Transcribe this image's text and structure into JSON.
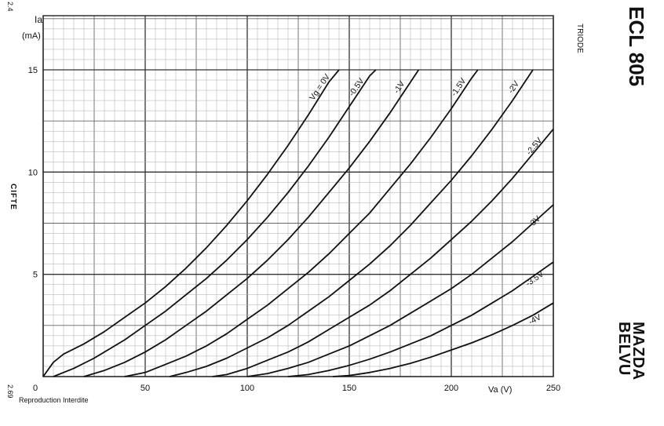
{
  "page": {
    "corner_top": "2.4",
    "corner_bottom": "2.69",
    "side_label": "CIFTE",
    "footer": "Reproduction Interdite",
    "triode_label": "TRIODE",
    "tube_name": "ECL 805",
    "brand_line1": "MAZDA",
    "brand_line2": "BELVU"
  },
  "chart_data": {
    "type": "line",
    "title": "ECL 805",
    "subtitle": "TRIODE",
    "xlabel": "Va (V)",
    "ylabel_main": "Ia",
    "ylabel_unit": "(mA)",
    "xlim": [
      0,
      250
    ],
    "ylim": [
      0,
      15
    ],
    "grid": true,
    "x_ticks": [
      "0",
      "50",
      "100",
      "150",
      "200",
      "250"
    ],
    "y_ticks": [
      "5",
      "10",
      "15"
    ],
    "series": [
      {
        "name": "Vg = 0V",
        "points": [
          [
            0,
            0
          ],
          [
            5,
            0.7
          ],
          [
            10,
            1.1
          ],
          [
            20,
            1.6
          ],
          [
            30,
            2.2
          ],
          [
            40,
            2.9
          ],
          [
            50,
            3.6
          ],
          [
            60,
            4.4
          ],
          [
            70,
            5.3
          ],
          [
            80,
            6.3
          ],
          [
            90,
            7.4
          ],
          [
            100,
            8.6
          ],
          [
            110,
            9.9
          ],
          [
            120,
            11.3
          ],
          [
            130,
            12.8
          ],
          [
            140,
            14.4
          ],
          [
            145,
            15.0
          ]
        ]
      },
      {
        "name": "-0.5V",
        "points": [
          [
            5,
            0
          ],
          [
            15,
            0.4
          ],
          [
            25,
            0.9
          ],
          [
            40,
            1.8
          ],
          [
            50,
            2.5
          ],
          [
            60,
            3.2
          ],
          [
            70,
            4.0
          ],
          [
            80,
            4.8
          ],
          [
            90,
            5.7
          ],
          [
            100,
            6.7
          ],
          [
            110,
            7.8
          ],
          [
            120,
            9.0
          ],
          [
            130,
            10.3
          ],
          [
            140,
            11.7
          ],
          [
            150,
            13.2
          ],
          [
            160,
            14.7
          ],
          [
            163,
            15.0
          ]
        ]
      },
      {
        "name": "-1V",
        "points": [
          [
            20,
            0
          ],
          [
            30,
            0.3
          ],
          [
            40,
            0.7
          ],
          [
            50,
            1.2
          ],
          [
            60,
            1.8
          ],
          [
            70,
            2.5
          ],
          [
            80,
            3.2
          ],
          [
            90,
            4.0
          ],
          [
            100,
            4.8
          ],
          [
            110,
            5.7
          ],
          [
            120,
            6.7
          ],
          [
            130,
            7.8
          ],
          [
            140,
            9.0
          ],
          [
            150,
            10.2
          ],
          [
            160,
            11.5
          ],
          [
            170,
            12.9
          ],
          [
            180,
            14.4
          ],
          [
            184,
            15.0
          ]
        ]
      },
      {
        "name": "-1.5V",
        "points": [
          [
            40,
            0
          ],
          [
            50,
            0.2
          ],
          [
            60,
            0.6
          ],
          [
            70,
            1.0
          ],
          [
            80,
            1.5
          ],
          [
            90,
            2.1
          ],
          [
            100,
            2.8
          ],
          [
            110,
            3.5
          ],
          [
            120,
            4.3
          ],
          [
            130,
            5.1
          ],
          [
            140,
            6.0
          ],
          [
            150,
            7.0
          ],
          [
            160,
            8.0
          ],
          [
            170,
            9.2
          ],
          [
            180,
            10.4
          ],
          [
            190,
            11.7
          ],
          [
            200,
            13.1
          ],
          [
            210,
            14.6
          ],
          [
            213,
            15.0
          ]
        ]
      },
      {
        "name": "-2V",
        "points": [
          [
            62,
            0
          ],
          [
            70,
            0.2
          ],
          [
            80,
            0.5
          ],
          [
            90,
            0.9
          ],
          [
            100,
            1.4
          ],
          [
            110,
            1.9
          ],
          [
            120,
            2.5
          ],
          [
            130,
            3.2
          ],
          [
            140,
            3.9
          ],
          [
            150,
            4.7
          ],
          [
            160,
            5.5
          ],
          [
            170,
            6.4
          ],
          [
            180,
            7.4
          ],
          [
            190,
            8.5
          ],
          [
            200,
            9.6
          ],
          [
            210,
            10.8
          ],
          [
            220,
            12.1
          ],
          [
            230,
            13.5
          ],
          [
            240,
            15.0
          ]
        ]
      },
      {
        "name": "-2.5V",
        "points": [
          [
            83,
            0
          ],
          [
            90,
            0.1
          ],
          [
            100,
            0.4
          ],
          [
            110,
            0.8
          ],
          [
            120,
            1.2
          ],
          [
            130,
            1.7
          ],
          [
            140,
            2.3
          ],
          [
            150,
            2.9
          ],
          [
            160,
            3.5
          ],
          [
            170,
            4.2
          ],
          [
            180,
            5.0
          ],
          [
            190,
            5.8
          ],
          [
            200,
            6.7
          ],
          [
            210,
            7.6
          ],
          [
            220,
            8.6
          ],
          [
            230,
            9.7
          ],
          [
            240,
            10.9
          ],
          [
            250,
            12.1
          ]
        ]
      },
      {
        "name": "-3V",
        "points": [
          [
            100,
            0
          ],
          [
            110,
            0.15
          ],
          [
            120,
            0.4
          ],
          [
            130,
            0.7
          ],
          [
            140,
            1.1
          ],
          [
            150,
            1.5
          ],
          [
            160,
            2.0
          ],
          [
            170,
            2.5
          ],
          [
            180,
            3.1
          ],
          [
            190,
            3.7
          ],
          [
            200,
            4.3
          ],
          [
            210,
            5.0
          ],
          [
            220,
            5.8
          ],
          [
            230,
            6.6
          ],
          [
            240,
            7.5
          ],
          [
            250,
            8.4
          ]
        ]
      },
      {
        "name": "-3.5V",
        "points": [
          [
            120,
            0
          ],
          [
            130,
            0.1
          ],
          [
            140,
            0.3
          ],
          [
            150,
            0.55
          ],
          [
            160,
            0.85
          ],
          [
            170,
            1.2
          ],
          [
            180,
            1.6
          ],
          [
            190,
            2.0
          ],
          [
            200,
            2.5
          ],
          [
            210,
            3.0
          ],
          [
            220,
            3.6
          ],
          [
            230,
            4.2
          ],
          [
            240,
            4.9
          ],
          [
            250,
            5.6
          ]
        ]
      },
      {
        "name": "-4V",
        "points": [
          [
            142,
            0
          ],
          [
            150,
            0.05
          ],
          [
            160,
            0.2
          ],
          [
            170,
            0.4
          ],
          [
            180,
            0.65
          ],
          [
            190,
            0.95
          ],
          [
            200,
            1.3
          ],
          [
            210,
            1.65
          ],
          [
            220,
            2.05
          ],
          [
            230,
            2.5
          ],
          [
            240,
            3.0
          ],
          [
            250,
            3.6
          ]
        ]
      }
    ]
  }
}
